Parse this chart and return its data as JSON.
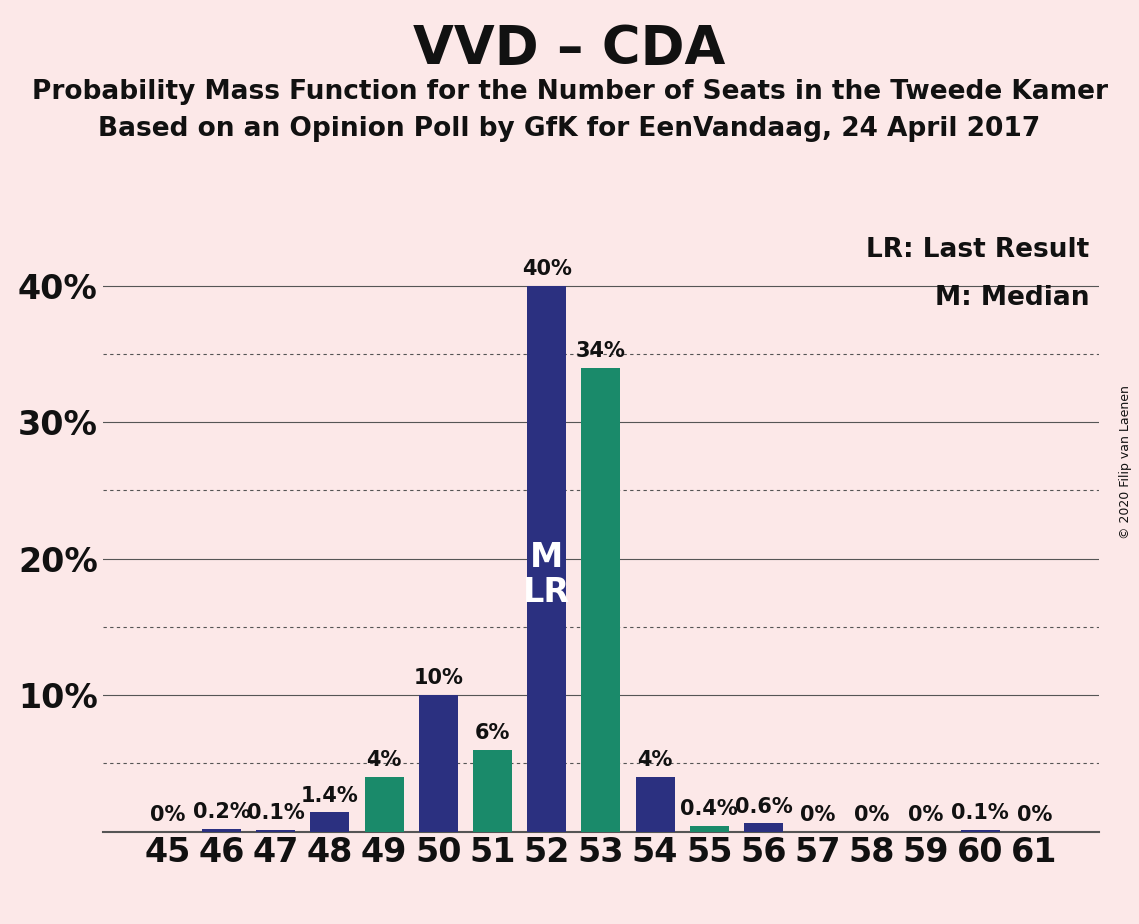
{
  "title": "VVD – CDA",
  "subtitle1": "Probability Mass Function for the Number of Seats in the Tweede Kamer",
  "subtitle2": "Based on an Opinion Poll by GfK for EenVandaag, 24 April 2017",
  "copyright": "© 2020 Filip van Laenen",
  "legend_lr": "LR: Last Result",
  "legend_m": "M: Median",
  "seats": [
    45,
    46,
    47,
    48,
    49,
    50,
    51,
    52,
    53,
    54,
    55,
    56,
    57,
    58,
    59,
    60,
    61
  ],
  "values": [
    0.0,
    0.2,
    0.1,
    1.4,
    4.0,
    10.0,
    6.0,
    40.0,
    34.0,
    4.0,
    0.4,
    0.6,
    0.0,
    0.0,
    0.0,
    0.1,
    0.0
  ],
  "labels": [
    "0%",
    "0.2%",
    "0.1%",
    "1.4%",
    "4%",
    "10%",
    "6%",
    "40%",
    "34%",
    "4%",
    "0.4%",
    "0.6%",
    "0%",
    "0%",
    "0%",
    "0.1%",
    "0%"
  ],
  "teal_seats": [
    49,
    51,
    53,
    55
  ],
  "median_seat": 52,
  "lr_seat": 52,
  "bar_color_dark_blue": "#2b3080",
  "bar_color_teal": "#1a8a6a",
  "background_color": "#fce8e8",
  "grid_color": "#555555",
  "text_color": "#111111",
  "ylim_max": 44,
  "solid_yticks": [
    10,
    20,
    30,
    40
  ],
  "dotted_yticks": [
    5,
    15,
    25,
    35
  ],
  "bar_width": 0.72,
  "title_fontsize": 38,
  "subtitle_fontsize": 19,
  "axis_tick_fontsize": 24,
  "bar_label_fontsize": 15,
  "legend_fontsize": 19,
  "inbar_fontsize": 24,
  "copyright_fontsize": 9
}
